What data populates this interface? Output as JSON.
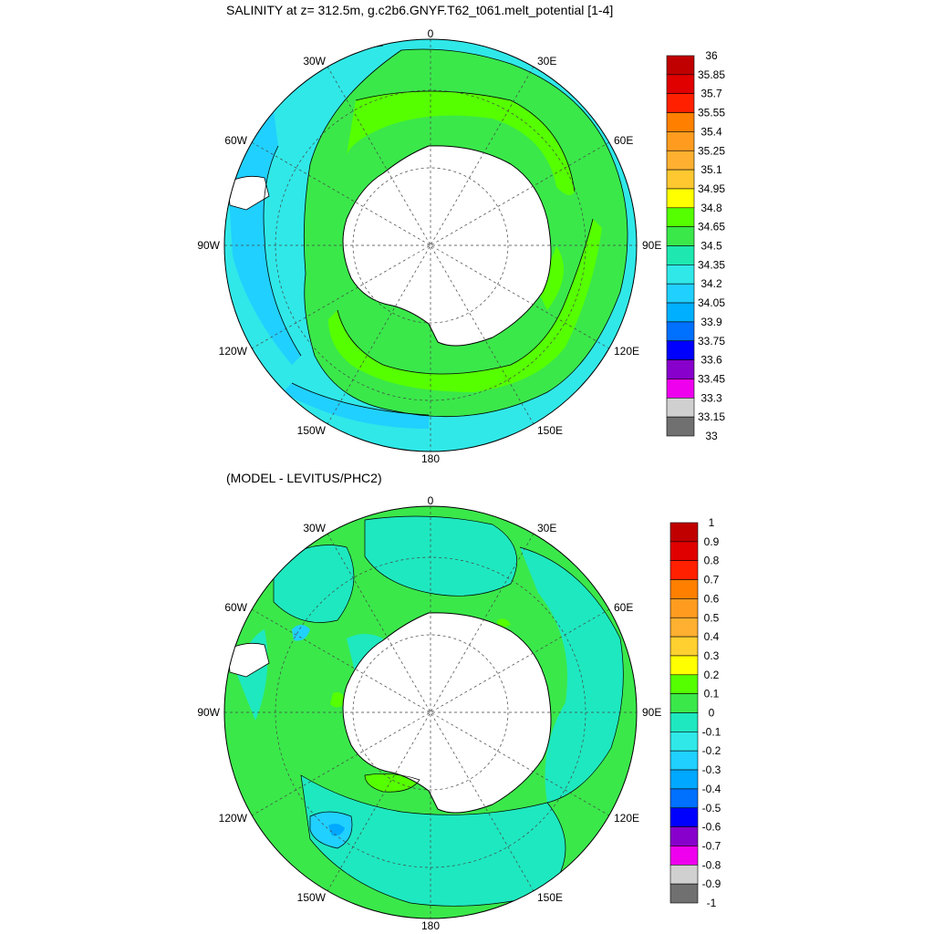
{
  "panels": [
    {
      "title": "SALINITY at z= 312.5m, g.c2b6.GNYF.T62_t061.melt_potential [1-4]",
      "lon_labels": {
        "top": "0",
        "bottom": "180",
        "left": "90W",
        "right": "90E",
        "ul1": "30W",
        "ul2": "60W",
        "ll1": "120W",
        "ll2": "150W",
        "ur1": "30E",
        "ur2": "60E",
        "lr1": "120E",
        "lr2": "150E"
      },
      "colorbar": {
        "labels": [
          "36",
          "35.85",
          "35.7",
          "35.55",
          "35.4",
          "35.25",
          "35.1",
          "34.95",
          "34.8",
          "34.65",
          "34.5",
          "34.35",
          "34.2",
          "34.05",
          "33.9",
          "33.75",
          "33.6",
          "33.45",
          "33.3",
          "33.15",
          "33"
        ],
        "colors": [
          "#c00000",
          "#e00000",
          "#ff2000",
          "#ff8000",
          "#ff9c20",
          "#ffb030",
          "#ffc830",
          "#ffff00",
          "#55ff00",
          "#3ae84a",
          "#1ee8b0",
          "#30e8e8",
          "#20d0ff",
          "#00b0ff",
          "#0070ff",
          "#0000ff",
          "#8800cc",
          "#ee00ee",
          "#d0d0d0",
          "#707070"
        ]
      }
    },
    {
      "title": "(MODEL - LEVITUS/PHC2)",
      "lon_labels": {
        "top": "0",
        "bottom": "180",
        "left": "90W",
        "right": "90E",
        "ul1": "30W",
        "ul2": "60W",
        "ll1": "120W",
        "ll2": "150W",
        "ur1": "30E",
        "ur2": "60E",
        "lr1": "120E",
        "lr2": "150E"
      },
      "colorbar": {
        "labels": [
          "1",
          "0.9",
          "0.8",
          "0.7",
          "0.6",
          "0.5",
          "0.4",
          "0.3",
          "0.2",
          "0.1",
          "0",
          "-0.1",
          "-0.2",
          "-0.3",
          "-0.4",
          "-0.5",
          "-0.6",
          "-0.7",
          "-0.8",
          "-0.9",
          "-1"
        ],
        "colors": [
          "#c00000",
          "#e00000",
          "#ff2000",
          "#ff8000",
          "#ff9c20",
          "#ffb030",
          "#ffd030",
          "#ffff00",
          "#55ff00",
          "#3ae84a",
          "#1ee8c0",
          "#30e8e8",
          "#20d0ff",
          "#00a8ff",
          "#0070ff",
          "#0000ff",
          "#8800cc",
          "#ee00ee",
          "#d0d0d0",
          "#707070"
        ]
      }
    }
  ]
}
